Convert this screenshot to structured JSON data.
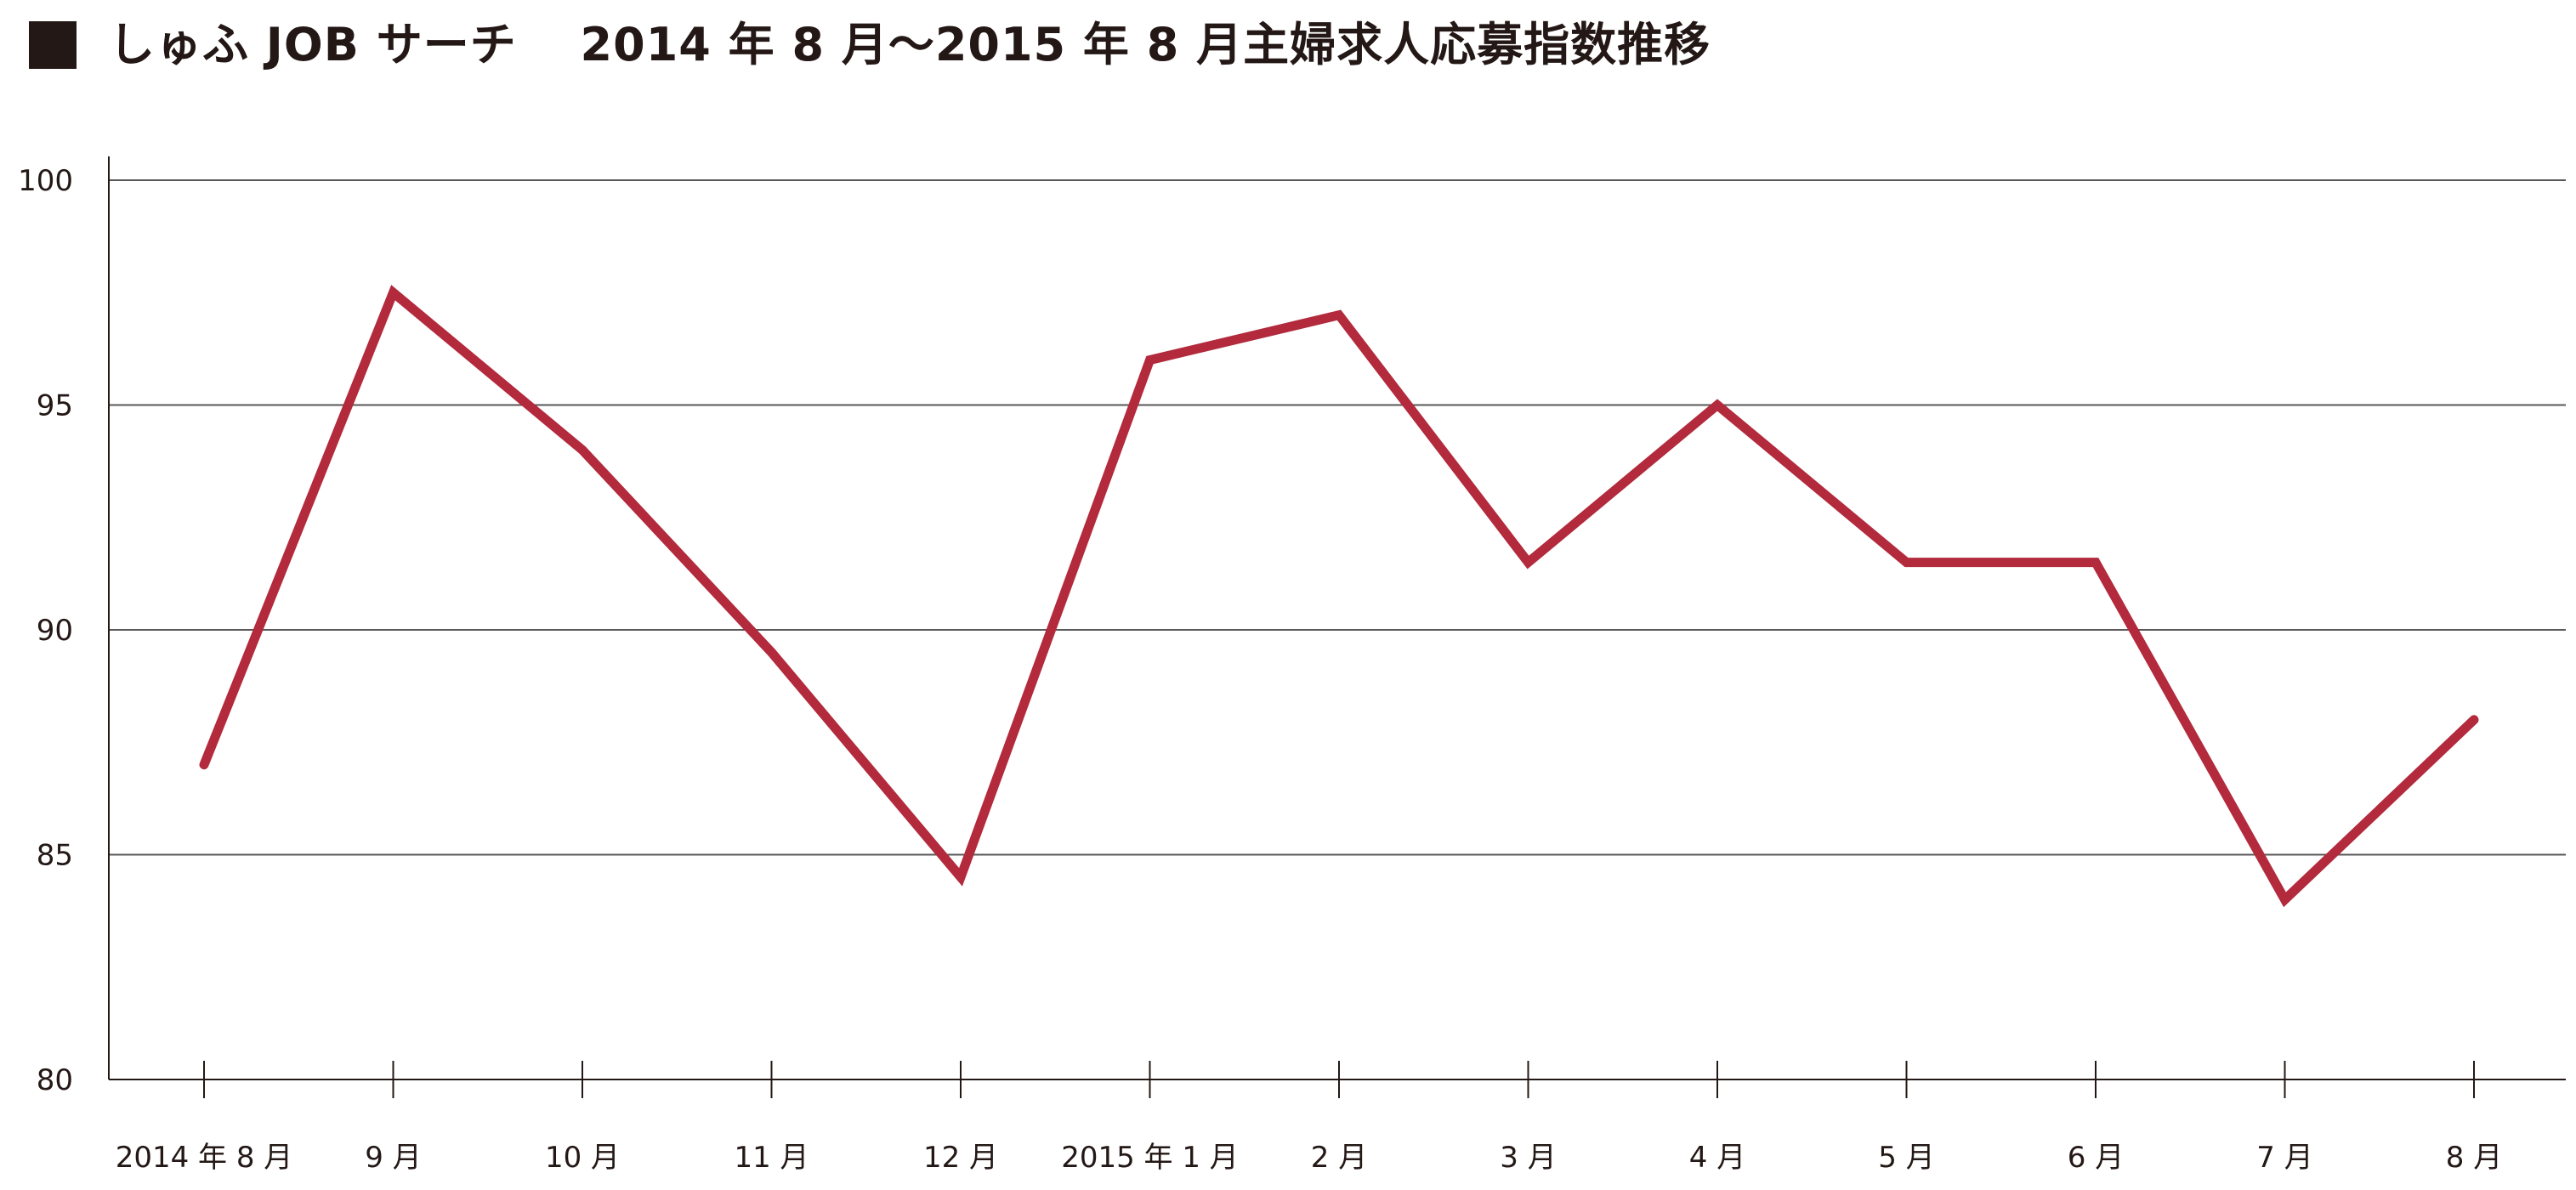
{
  "chart_data": {
    "type": "line",
    "title": "しゅふ JOB サーチ　 2014 年 8 月〜2015 年 8 月主婦求人応募指数推移",
    "xlabel": "",
    "ylabel": "",
    "categories": [
      "2014 年 8 月",
      "9 月",
      "10 月",
      "11 月",
      "12 月",
      "2015 年 1 月",
      "2 月",
      "3 月",
      "4 月",
      "5 月",
      "6 月",
      "7 月",
      "8 月"
    ],
    "series": [
      {
        "name": "",
        "values": [
          87,
          97.5,
          94,
          89.5,
          84.5,
          96,
          97,
          91.5,
          95,
          91.5,
          91.5,
          84,
          88
        ],
        "color": "#b22a3c"
      }
    ],
    "ylim": [
      80,
      100
    ],
    "yticks": [
      80,
      85,
      90,
      95,
      100
    ],
    "grid": true,
    "legend": "none"
  },
  "colors": {
    "text": "#231815",
    "grid": "#595757",
    "line": "#b22a3c"
  },
  "icons": {
    "title_marker": "black-square-icon"
  }
}
